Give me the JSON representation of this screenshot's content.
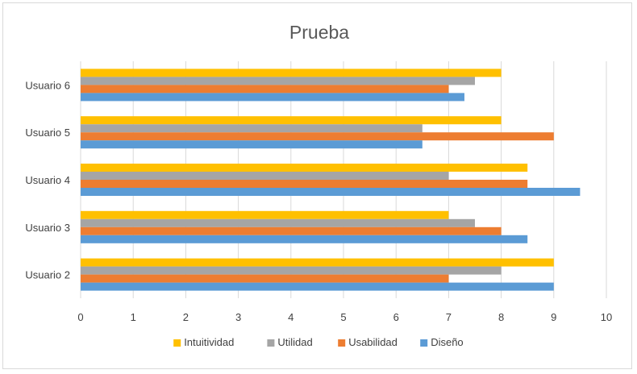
{
  "chart_data": {
    "type": "bar",
    "orientation": "horizontal",
    "title": "Prueba",
    "categories": [
      "Usuario 2",
      "Usuario 3",
      "Usuario 4",
      "Usuario 5",
      "Usuario 6"
    ],
    "series": [
      {
        "name": "Intuitividad",
        "color": "#ffc000",
        "values": [
          9,
          7,
          8.5,
          8,
          8
        ]
      },
      {
        "name": "Utilidad",
        "color": "#a5a5a5",
        "values": [
          8,
          7.5,
          7,
          6.5,
          7.5
        ]
      },
      {
        "name": "Usabilidad",
        "color": "#ed7d31",
        "values": [
          7,
          8,
          8.5,
          9,
          7
        ]
      },
      {
        "name": "Diseño",
        "color": "#5b9bd5",
        "values": [
          9,
          8.5,
          9.5,
          6.5,
          7.3
        ]
      }
    ],
    "xlim": [
      0,
      10
    ],
    "xticks": [
      "0",
      "1",
      "2",
      "3",
      "4",
      "5",
      "6",
      "7",
      "8",
      "9",
      "10"
    ],
    "grid": true,
    "legend_position": "bottom"
  }
}
